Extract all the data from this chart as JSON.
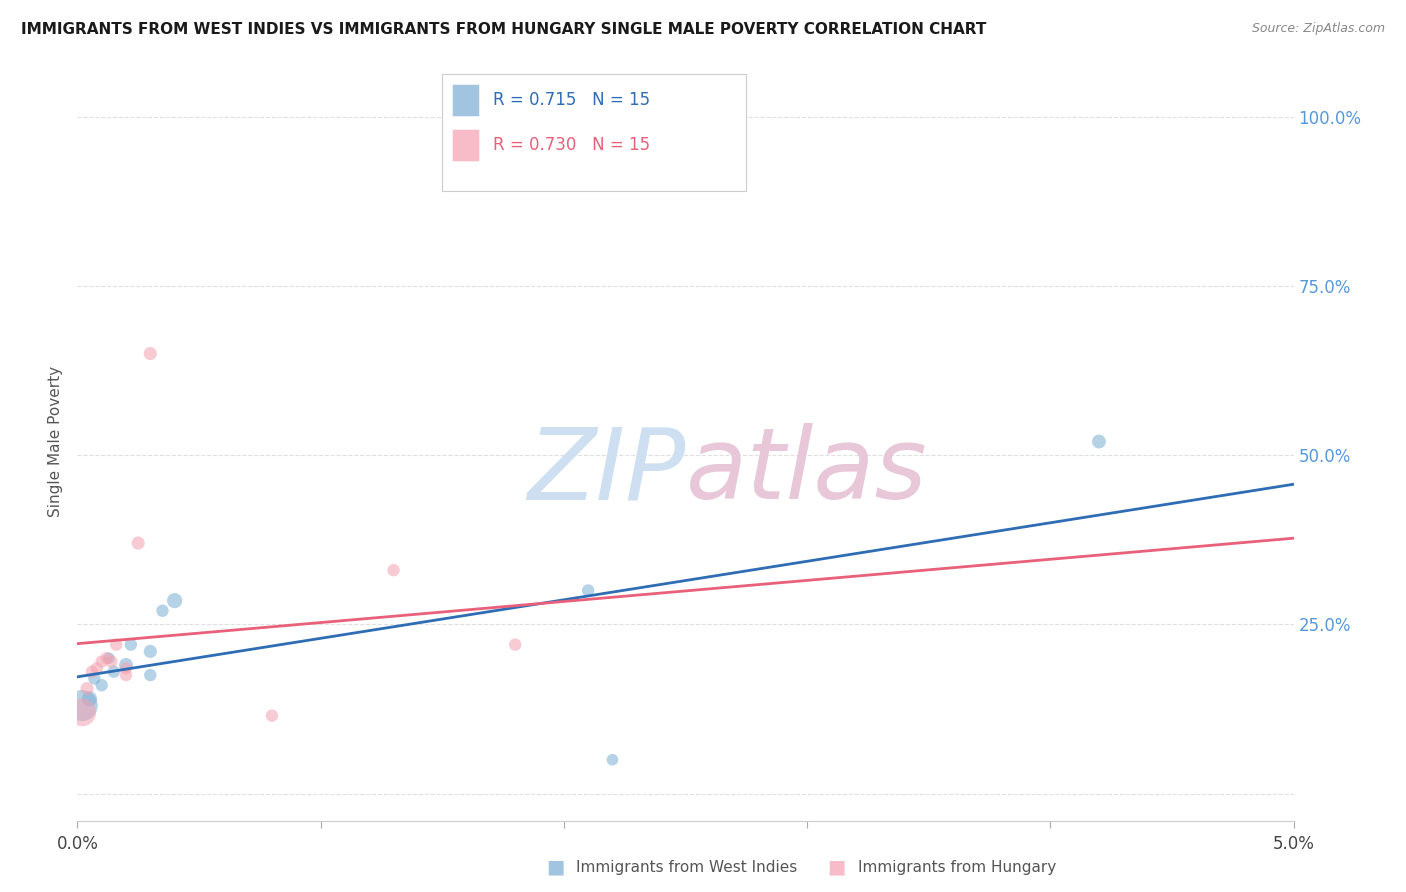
{
  "title": "IMMIGRANTS FROM WEST INDIES VS IMMIGRANTS FROM HUNGARY SINGLE MALE POVERTY CORRELATION CHART",
  "source": "Source: ZipAtlas.com",
  "ylabel": "Single Male Poverty",
  "y_ticks": [
    0.0,
    0.25,
    0.5,
    0.75,
    1.0
  ],
  "y_tick_labels": [
    "",
    "25.0%",
    "50.0%",
    "75.0%",
    "100.0%"
  ],
  "x_range": [
    0.0,
    0.05
  ],
  "y_range": [
    -0.04,
    1.08
  ],
  "west_indies_color": "#7aadd4",
  "hungary_color": "#f4a0b0",
  "west_indies_line_color": "#2e6db4",
  "hungary_line_color": "#e8607a",
  "watermark_zip_color": "#cddff0",
  "watermark_atlas_color": "#e8c8d8",
  "R_west_indies": 0.715,
  "R_hungary": 0.73,
  "N_west_indies": 15,
  "N_hungary": 15,
  "west_indies_x": [
    0.0002,
    0.0005,
    0.0007,
    0.001,
    0.0013,
    0.0015,
    0.002,
    0.0022,
    0.003,
    0.003,
    0.0035,
    0.004,
    0.021,
    0.022,
    0.042
  ],
  "west_indies_y": [
    0.13,
    0.14,
    0.17,
    0.16,
    0.2,
    0.18,
    0.19,
    0.22,
    0.21,
    0.175,
    0.27,
    0.285,
    0.3,
    0.05,
    0.52
  ],
  "west_indies_size": [
    500,
    120,
    80,
    80,
    70,
    80,
    100,
    80,
    90,
    80,
    80,
    120,
    80,
    70,
    100
  ],
  "hungary_x": [
    0.0002,
    0.0004,
    0.0006,
    0.0008,
    0.001,
    0.0012,
    0.0014,
    0.0016,
    0.002,
    0.002,
    0.0025,
    0.003,
    0.008,
    0.013,
    0.018
  ],
  "hungary_y": [
    0.12,
    0.155,
    0.18,
    0.185,
    0.195,
    0.2,
    0.195,
    0.22,
    0.175,
    0.185,
    0.37,
    0.65,
    0.115,
    0.33,
    0.22
  ],
  "hungary_size": [
    400,
    90,
    80,
    80,
    80,
    80,
    80,
    80,
    80,
    80,
    90,
    90,
    80,
    80,
    80
  ],
  "legend_label_wi": "Immigrants from West Indies",
  "legend_label_hu": "Immigrants from Hungary",
  "background_color": "#ffffff",
  "grid_color": "#e0e0e0",
  "y_tick_color": "#5599dd",
  "x_tick_color": "#444444",
  "title_color": "#1a1a1a",
  "source_color": "#888888",
  "ylabel_color": "#555555"
}
